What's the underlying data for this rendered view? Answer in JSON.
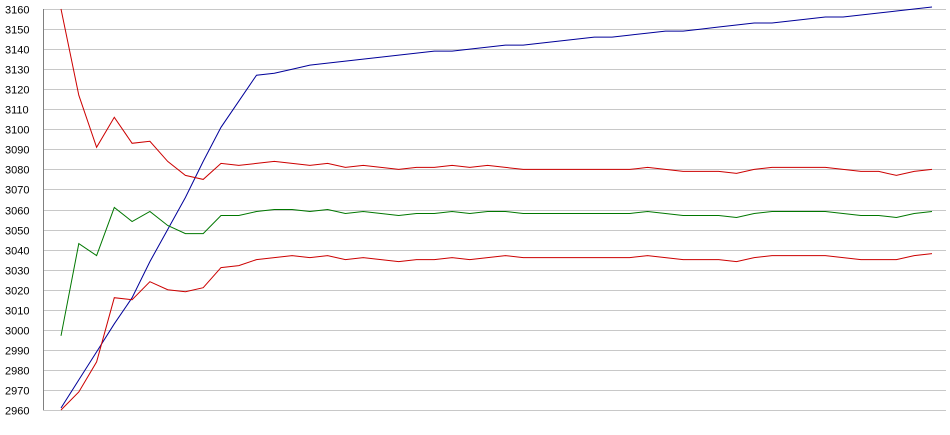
{
  "chart_data": {
    "type": "line",
    "title": "",
    "xlabel": "",
    "ylabel": "",
    "x": [
      0,
      1,
      2,
      3,
      4,
      5,
      6,
      7,
      8,
      9,
      10,
      11,
      12,
      13,
      14,
      15,
      16,
      17,
      18,
      19,
      20,
      21,
      22,
      23,
      24,
      25,
      26,
      27,
      28,
      29,
      30,
      31,
      32,
      33,
      34,
      35,
      36,
      37,
      38,
      39,
      40,
      41,
      42,
      43,
      44,
      45,
      46,
      47,
      48,
      49
    ],
    "ylim": [
      2960,
      3160
    ],
    "yticks": [
      2960,
      2970,
      2980,
      2990,
      3000,
      3010,
      3020,
      3030,
      3040,
      3050,
      3060,
      3070,
      3080,
      3090,
      3100,
      3110,
      3120,
      3130,
      3140,
      3150,
      3160
    ],
    "grid": true,
    "legend": "none",
    "series": [
      {
        "color": "#000099",
        "values": [
          2961,
          2975,
          2989,
          3003,
          3016,
          3034,
          3050,
          3066,
          3084,
          3101,
          3114,
          3127,
          3128,
          3130,
          3132,
          3133,
          3134,
          3135,
          3136,
          3137,
          3138,
          3139,
          3139,
          3140,
          3141,
          3142,
          3142,
          3143,
          3144,
          3145,
          3146,
          3146,
          3147,
          3148,
          3149,
          3149,
          3150,
          3151,
          3152,
          3153,
          3153,
          3154,
          3155,
          3156,
          3156,
          3157,
          3158,
          3159,
          3160,
          3161
        ]
      },
      {
        "color": "#cc0000",
        "values": [
          3160,
          3117,
          3091,
          3106,
          3093,
          3094,
          3084,
          3077,
          3075,
          3083,
          3082,
          3083,
          3084,
          3083,
          3082,
          3083,
          3081,
          3082,
          3081,
          3080,
          3081,
          3081,
          3082,
          3081,
          3082,
          3081,
          3080,
          3080,
          3080,
          3080,
          3080,
          3080,
          3080,
          3081,
          3080,
          3079,
          3079,
          3079,
          3078,
          3080,
          3081,
          3081,
          3081,
          3081,
          3080,
          3079,
          3079,
          3077,
          3079,
          3080
        ]
      },
      {
        "color": "#007700",
        "values": [
          2997,
          3043,
          3037,
          3061,
          3054,
          3059,
          3052,
          3048,
          3048,
          3057,
          3057,
          3059,
          3060,
          3060,
          3059,
          3060,
          3058,
          3059,
          3058,
          3057,
          3058,
          3058,
          3059,
          3058,
          3059,
          3059,
          3058,
          3058,
          3058,
          3058,
          3058,
          3058,
          3058,
          3059,
          3058,
          3057,
          3057,
          3057,
          3056,
          3058,
          3059,
          3059,
          3059,
          3059,
          3058,
          3057,
          3057,
          3056,
          3058,
          3059
        ]
      },
      {
        "color": "#cc0000",
        "values": [
          2960,
          2969,
          2984,
          3016,
          3015,
          3024,
          3020,
          3019,
          3021,
          3031,
          3032,
          3035,
          3036,
          3037,
          3036,
          3037,
          3035,
          3036,
          3035,
          3034,
          3035,
          3035,
          3036,
          3035,
          3036,
          3037,
          3036,
          3036,
          3036,
          3036,
          3036,
          3036,
          3036,
          3037,
          3036,
          3035,
          3035,
          3035,
          3034,
          3036,
          3037,
          3037,
          3037,
          3037,
          3036,
          3035,
          3035,
          3035,
          3037,
          3038
        ]
      }
    ]
  }
}
